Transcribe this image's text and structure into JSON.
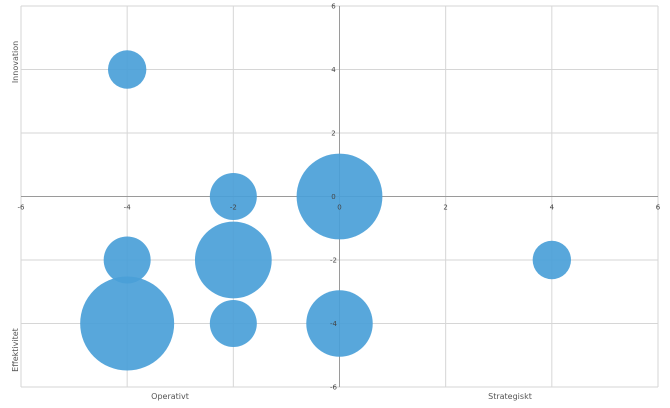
{
  "chart_data": {
    "type": "scatter",
    "subtype": "bubble",
    "x_ticks": [
      "-6",
      "-4",
      "-2",
      "0",
      "2",
      "4",
      "6"
    ],
    "y_ticks": [
      "6",
      "4",
      "2",
      "0",
      "-2",
      "-4",
      "-6"
    ],
    "xlim": [
      -6,
      6
    ],
    "ylim": [
      -6,
      6
    ],
    "grid": true,
    "axis_words": {
      "x_left": "Operativt",
      "x_right": "Strategiskt",
      "y_top": "Innovation",
      "y_bottom": "Effektivitet"
    },
    "colors": {
      "bubble": "#4a9fd8",
      "grid": "#d6d6d6",
      "axis": "#9a9a9a"
    },
    "points": [
      {
        "x": -4,
        "y": 4,
        "size": 1
      },
      {
        "x": -2,
        "y": 0,
        "size": 1.5
      },
      {
        "x": 0,
        "y": 0,
        "size": 5
      },
      {
        "x": -4,
        "y": -2,
        "size": 1.5
      },
      {
        "x": -2,
        "y": -2,
        "size": 4
      },
      {
        "x": 4,
        "y": -2,
        "size": 1
      },
      {
        "x": -4,
        "y": -4,
        "size": 6
      },
      {
        "x": -2,
        "y": -4,
        "size": 1.5
      },
      {
        "x": 0,
        "y": -4,
        "size": 3
      }
    ]
  }
}
